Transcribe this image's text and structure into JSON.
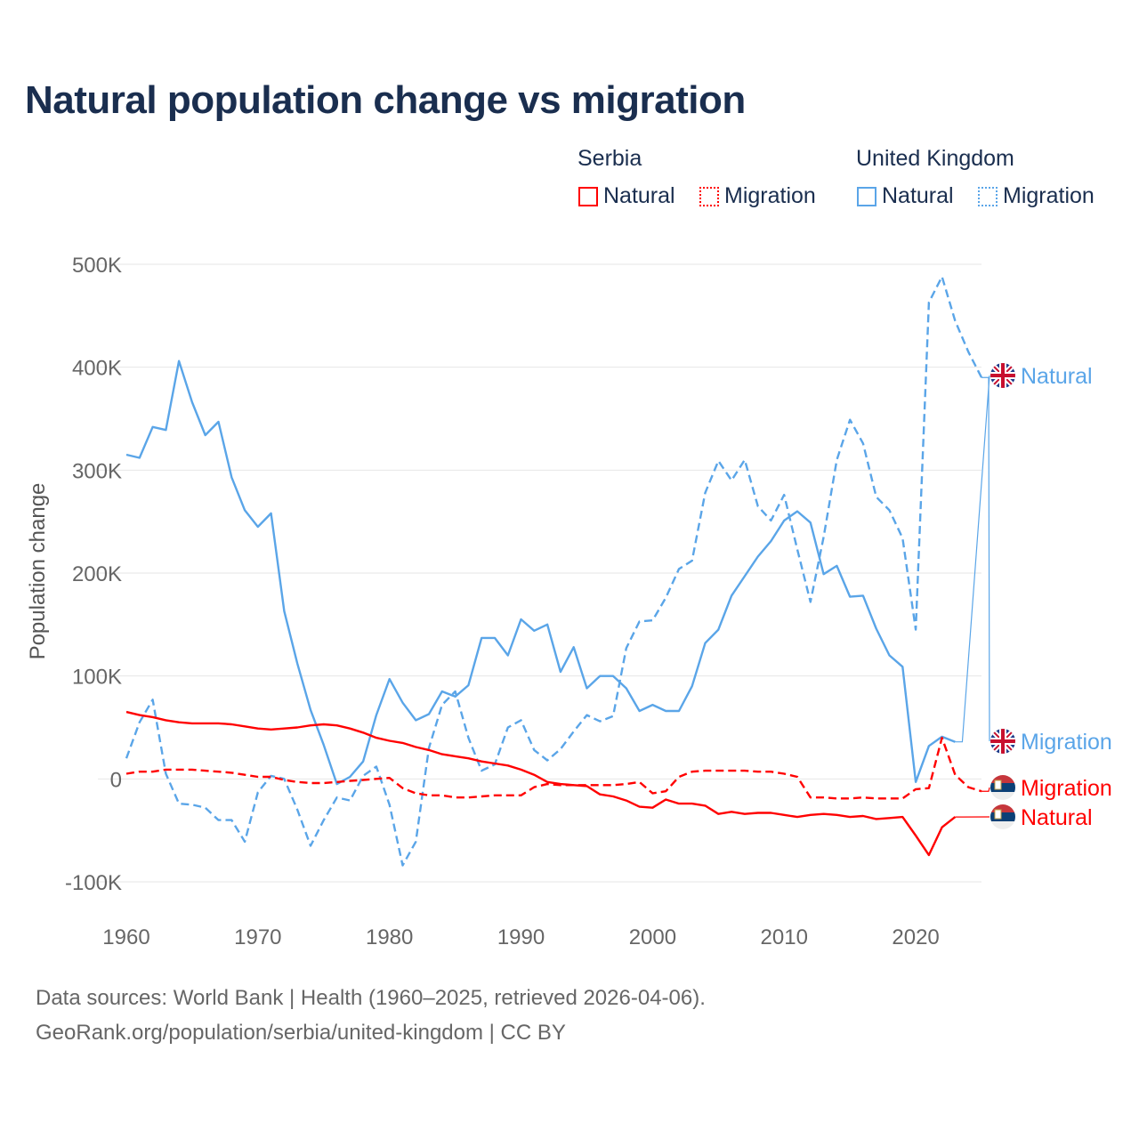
{
  "title": "Natural population change vs migration",
  "legend": {
    "groups": [
      {
        "name": "Serbia",
        "items": [
          "Natural",
          "Migration"
        ],
        "color": "#ff0000"
      },
      {
        "name": "United Kingdom",
        "items": [
          "Natural",
          "Migration"
        ],
        "color": "#5aa5e8"
      }
    ]
  },
  "footer": {
    "line1": "Data sources: World Bank | Health (1960–2025, retrieved 2026-04-06).",
    "line2": "GeoRank.org/population/serbia/united-kingdom | CC BY"
  },
  "chart_data": {
    "type": "line",
    "title": "Natural population change vs migration",
    "xlabel": "",
    "ylabel": "Population change",
    "xlim": [
      1960,
      2025
    ],
    "ylim": [
      -100000,
      500000
    ],
    "x_ticks": [
      1960,
      1970,
      1980,
      1990,
      2000,
      2010,
      2020
    ],
    "x_tick_labels": [
      "1960",
      "1970",
      "1980",
      "1990",
      "2000",
      "2010",
      "2020"
    ],
    "y_ticks": [
      -100000,
      0,
      100000,
      200000,
      300000,
      400000,
      500000
    ],
    "y_tick_labels": [
      "-100K",
      "0",
      "100K",
      "200K",
      "300K",
      "400K",
      "500K"
    ],
    "grid": true,
    "legend_position": "top-right",
    "x_start": 1960,
    "series": [
      {
        "name": "United Kingdom Natural",
        "label": "Natural",
        "country": "United Kingdom",
        "color": "#5aa5e8",
        "dashed": false,
        "flag": "uk-flag",
        "values_k": [
          315,
          312,
          342,
          339,
          406,
          366,
          334,
          347,
          293,
          261,
          245,
          258,
          163,
          112,
          67,
          33,
          -5,
          2,
          17,
          62,
          97,
          74,
          57,
          63,
          85,
          80,
          91,
          137,
          137,
          120,
          155,
          144,
          150,
          104,
          128,
          88,
          100,
          100,
          88,
          66,
          72,
          66,
          66,
          90,
          132,
          145,
          178,
          197,
          216,
          231,
          251,
          260,
          249,
          199,
          207,
          177,
          178,
          146,
          120,
          109,
          -3,
          32,
          41,
          36
        ]
      },
      {
        "name": "United Kingdom Migration",
        "label": "Migration",
        "country": "United Kingdom",
        "color": "#5aa5e8",
        "dashed": true,
        "flag": "uk-flag",
        "values_k": [
          20,
          55,
          77,
          5,
          -24,
          -25,
          -28,
          -40,
          -40,
          -61,
          -13,
          3,
          0,
          -30,
          -65,
          -40,
          -18,
          -21,
          3,
          12,
          -25,
          -84,
          -61,
          30,
          72,
          85,
          40,
          8,
          14,
          50,
          57,
          28,
          18,
          29,
          46,
          62,
          56,
          61,
          127,
          153,
          154,
          176,
          204,
          212,
          278,
          309,
          290,
          310,
          265,
          251,
          276,
          223,
          172,
          235,
          310,
          349,
          326,
          274,
          261,
          234,
          145,
          463,
          488,
          445,
          415,
          390
        ]
      },
      {
        "name": "Serbia Migration",
        "label": "Migration",
        "country": "Serbia",
        "color": "#ff0000",
        "dashed": true,
        "flag": "serbia-flag",
        "values_k": [
          5,
          7,
          7,
          9,
          9,
          9,
          8,
          7,
          6,
          4,
          2,
          2,
          -1,
          -3,
          -4,
          -4,
          -3,
          -2,
          -1,
          0,
          1,
          -9,
          -14,
          -16,
          -16,
          -18,
          -18,
          -17,
          -16,
          -16,
          -16,
          -8,
          -5,
          -6,
          -6,
          -6,
          -6,
          -6,
          -5,
          -3,
          -14,
          -12,
          2,
          7,
          8,
          8,
          8,
          8,
          7,
          7,
          5,
          2,
          -18,
          -18,
          -19,
          -19,
          -18,
          -19,
          -19,
          -19,
          -10,
          -9,
          40,
          4,
          -8,
          -12
        ]
      },
      {
        "name": "Serbia Natural",
        "label": "Natural",
        "country": "Serbia",
        "color": "#ff0000",
        "dashed": false,
        "flag": "serbia-flag",
        "values_k": [
          65,
          62,
          60,
          57,
          55,
          54,
          54,
          54,
          53,
          51,
          49,
          48,
          49,
          50,
          52,
          53,
          52,
          49,
          45,
          40,
          37,
          35,
          31,
          28,
          24,
          22,
          20,
          17,
          15,
          13,
          9,
          4,
          -3,
          -5,
          -6,
          -7,
          -15,
          -17,
          -21,
          -27,
          -28,
          -20,
          -24,
          -24,
          -26,
          -34,
          -32,
          -34,
          -33,
          -33,
          -35,
          -37,
          -35,
          -34,
          -35,
          -37,
          -36,
          -39,
          -38,
          -37,
          -55,
          -74,
          -47,
          -37
        ]
      }
    ]
  }
}
